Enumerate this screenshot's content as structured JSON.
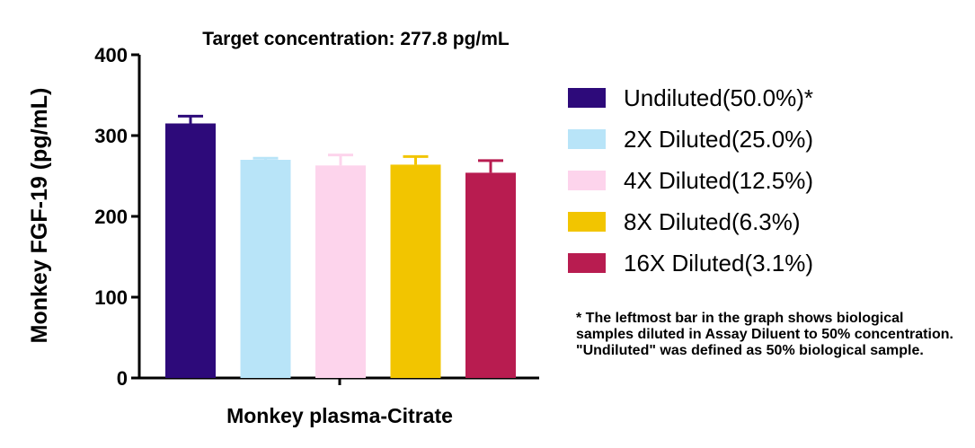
{
  "chart_data": {
    "type": "bar",
    "title": "Target concentration: 277.8 pg/mL",
    "xlabel": "Monkey plasma-Citrate",
    "ylabel": "Monkey FGF-19 (pg/mL)",
    "ylim": [
      0,
      400
    ],
    "yticks": [
      0,
      100,
      200,
      300,
      400
    ],
    "legend_position": "right",
    "series": [
      {
        "name": "Undiluted(50.0%)*",
        "value": 315,
        "error": 9,
        "color": "#2d0a7a"
      },
      {
        "name": "2X Diluted(25.0%)",
        "value": 270,
        "error": 2,
        "color": "#b8e4f8"
      },
      {
        "name": "4X Diluted(12.5%)",
        "value": 263,
        "error": 13,
        "color": "#fdd4ec"
      },
      {
        "name": "8X Diluted(6.3%)",
        "value": 264,
        "error": 10,
        "color": "#f2c500"
      },
      {
        "name": "16X Diluted(3.1%)",
        "value": 254,
        "error": 15,
        "color": "#b81c50"
      }
    ],
    "footnote": "* The leftmost bar in the graph shows biological samples diluted in Assay Diluent to 50% concentration. \"Undiluted\" was defined as 50% biological sample."
  }
}
